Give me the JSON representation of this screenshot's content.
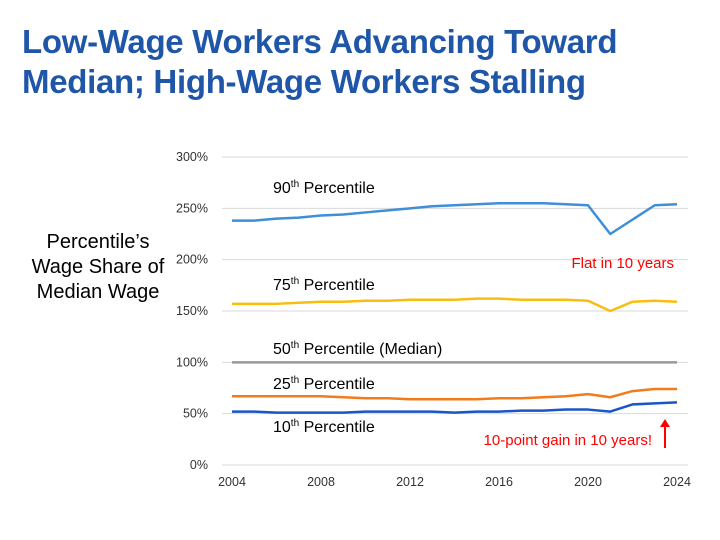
{
  "chart_data": {
    "type": "line",
    "title": "Low-Wage Workers Advancing Toward Median; High-Wage Workers Stalling",
    "ylabel": "Percentile’s Wage Share of Median Wage",
    "xlabel": "",
    "x": [
      2004,
      2005,
      2006,
      2007,
      2008,
      2009,
      2010,
      2011,
      2012,
      2013,
      2014,
      2015,
      2016,
      2017,
      2018,
      2019,
      2020,
      2021,
      2022,
      2023,
      2024
    ],
    "xticks": [
      "2004",
      "2008",
      "2012",
      "2016",
      "2020",
      "2024"
    ],
    "yticks": [
      "0%",
      "50%",
      "100%",
      "150%",
      "200%",
      "250%",
      "300%"
    ],
    "ylim": [
      0,
      300
    ],
    "grid": true,
    "series": [
      {
        "name": "90",
        "label_suffix": "th",
        "label_rest": " Percentile",
        "color": "#3f8fd8",
        "values": [
          238,
          238,
          240,
          241,
          243,
          244,
          246,
          248,
          250,
          252,
          253,
          254,
          255,
          255,
          255,
          254,
          253,
          225,
          239,
          253,
          254
        ]
      },
      {
        "name": "75",
        "label_suffix": "th",
        "label_rest": " Percentile",
        "color": "#f9bd10",
        "values": [
          157,
          157,
          157,
          158,
          159,
          159,
          160,
          160,
          161,
          161,
          161,
          162,
          162,
          161,
          161,
          161,
          160,
          150,
          159,
          160,
          159
        ]
      },
      {
        "name": "50",
        "label_suffix": "th",
        "label_rest": " Percentile (Median)",
        "color": "#999999",
        "values": [
          100,
          100,
          100,
          100,
          100,
          100,
          100,
          100,
          100,
          100,
          100,
          100,
          100,
          100,
          100,
          100,
          100,
          100,
          100,
          100,
          100
        ]
      },
      {
        "name": "25",
        "label_suffix": "th",
        "label_rest": " Percentile",
        "color": "#f27b1c",
        "values": [
          67,
          67,
          67,
          67,
          67,
          66,
          65,
          65,
          64,
          64,
          64,
          64,
          65,
          65,
          66,
          67,
          69,
          66,
          72,
          74,
          74
        ]
      },
      {
        "name": "10",
        "label_suffix": "th",
        "label_rest": " Percentile",
        "color": "#1b56c8",
        "values": [
          52,
          52,
          51,
          51,
          51,
          51,
          52,
          52,
          52,
          52,
          51,
          52,
          52,
          53,
          53,
          54,
          54,
          52,
          59,
          60,
          61
        ]
      }
    ],
    "annotations": [
      "Flat in 10 years",
      "10-point gain in 10 years!"
    ],
    "annotation_color": "#ff0000"
  },
  "title_line1": "Low-Wage Workers Advancing Toward",
  "title_line2": "Median; High-Wage Workers Stalling",
  "ylabel_lines": [
    "Percentile’s",
    "Wage Share of",
    "Median Wage"
  ]
}
